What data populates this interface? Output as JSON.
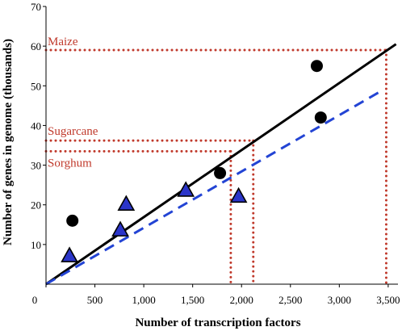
{
  "chart_data": {
    "type": "scatter",
    "xlabel": "Number of transcription factors",
    "ylabel": "Number of genes in genome (thousands)",
    "xlim": [
      0,
      3600
    ],
    "ylim": [
      0,
      70
    ],
    "x_ticks": [
      {
        "value": 0,
        "label": "0"
      },
      {
        "value": 500,
        "label": "500"
      },
      {
        "value": 1000,
        "label": "1,000"
      },
      {
        "value": 1500,
        "label": "1,500"
      },
      {
        "value": 2000,
        "label": "2,000"
      },
      {
        "value": 2500,
        "label": "2,500"
      },
      {
        "value": 3000,
        "label": "3,000"
      },
      {
        "value": 3500,
        "label": "3,500"
      }
    ],
    "y_ticks": [
      {
        "value": 10,
        "label": "10"
      },
      {
        "value": 20,
        "label": "20"
      },
      {
        "value": 30,
        "label": "30"
      },
      {
        "value": 40,
        "label": "40"
      },
      {
        "value": 50,
        "label": "50"
      },
      {
        "value": 60,
        "label": "60"
      },
      {
        "value": 70,
        "label": "70"
      }
    ],
    "grid": false,
    "series": [
      {
        "marker": "circle",
        "color": "#000000",
        "points": [
          {
            "x": 270,
            "y": 16
          },
          {
            "x": 1780,
            "y": 28
          },
          {
            "x": 2770,
            "y": 55
          },
          {
            "x": 2810,
            "y": 42
          }
        ]
      },
      {
        "marker": "triangle",
        "color": "#2b35c9",
        "points": [
          {
            "x": 240,
            "y": 7
          },
          {
            "x": 760,
            "y": 13.5
          },
          {
            "x": 820,
            "y": 20
          },
          {
            "x": 1430,
            "y": 23.5
          },
          {
            "x": 1970,
            "y": 22
          }
        ]
      }
    ],
    "trendlines": [
      {
        "style": "solid",
        "color": "#000000",
        "x": [
          0,
          3580
        ],
        "y": [
          0,
          60.5
        ]
      },
      {
        "style": "dashed",
        "color": "#2344d4",
        "x": [
          0,
          3450
        ],
        "y": [
          0,
          49
        ]
      }
    ],
    "reference_lines": [
      {
        "label": "Maize",
        "y": 59,
        "x_end": 3480
      },
      {
        "label": "Sugarcane",
        "y": 36.2,
        "x_end": 2120
      },
      {
        "label": "Sorghum",
        "y": 33.5,
        "x_end": 1890
      }
    ],
    "reference_color": "#c0392b"
  }
}
